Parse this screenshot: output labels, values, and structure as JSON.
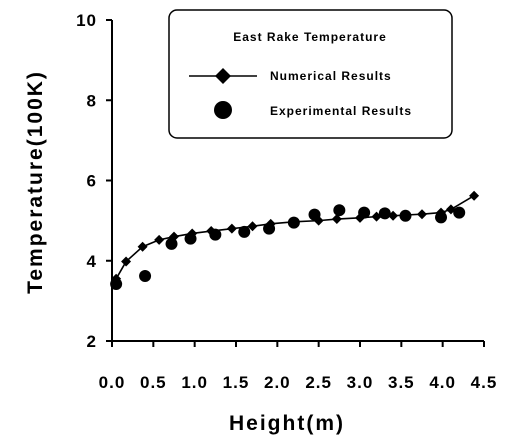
{
  "chart_data": {
    "type": "line",
    "title": "",
    "xlabel": "Height(m)",
    "ylabel": "Temperature(100K)",
    "xlim": [
      0,
      4.5
    ],
    "ylim": [
      2,
      10
    ],
    "x_ticks": [
      "0.0",
      "0.5",
      "1.0",
      "1.5",
      "2.0",
      "2.5",
      "3.0",
      "3.5",
      "4.0",
      "4.5"
    ],
    "y_ticks": [
      "2",
      "4",
      "6",
      "8",
      "10"
    ],
    "grid": false,
    "legend": {
      "title": "East Rake Temperature",
      "placement": "top-right",
      "entries": [
        "Numerical Results",
        "Experimental Results"
      ]
    },
    "series": [
      {
        "name": "Numerical Results",
        "marker": "diamond",
        "line": true,
        "x": [
          0.05,
          0.17,
          0.37,
          0.57,
          0.75,
          0.97,
          1.2,
          1.45,
          1.7,
          1.92,
          2.2,
          2.5,
          2.72,
          3.0,
          3.2,
          3.4,
          3.55,
          3.75,
          3.98,
          4.1,
          4.38
        ],
        "y": [
          3.55,
          3.98,
          4.35,
          4.52,
          4.6,
          4.68,
          4.74,
          4.8,
          4.86,
          4.92,
          4.97,
          5.0,
          5.04,
          5.07,
          5.1,
          5.12,
          5.14,
          5.16,
          5.2,
          5.28,
          5.62
        ]
      },
      {
        "name": "Experimental Results",
        "marker": "circle",
        "line": false,
        "x": [
          0.05,
          0.4,
          0.72,
          0.95,
          1.25,
          1.6,
          1.9,
          2.2,
          2.45,
          2.75,
          3.05,
          3.3,
          3.55,
          3.98,
          4.2
        ],
        "y": [
          3.42,
          3.62,
          4.42,
          4.55,
          4.65,
          4.72,
          4.8,
          4.95,
          5.15,
          5.26,
          5.2,
          5.18,
          5.12,
          5.08,
          5.2
        ]
      }
    ]
  }
}
